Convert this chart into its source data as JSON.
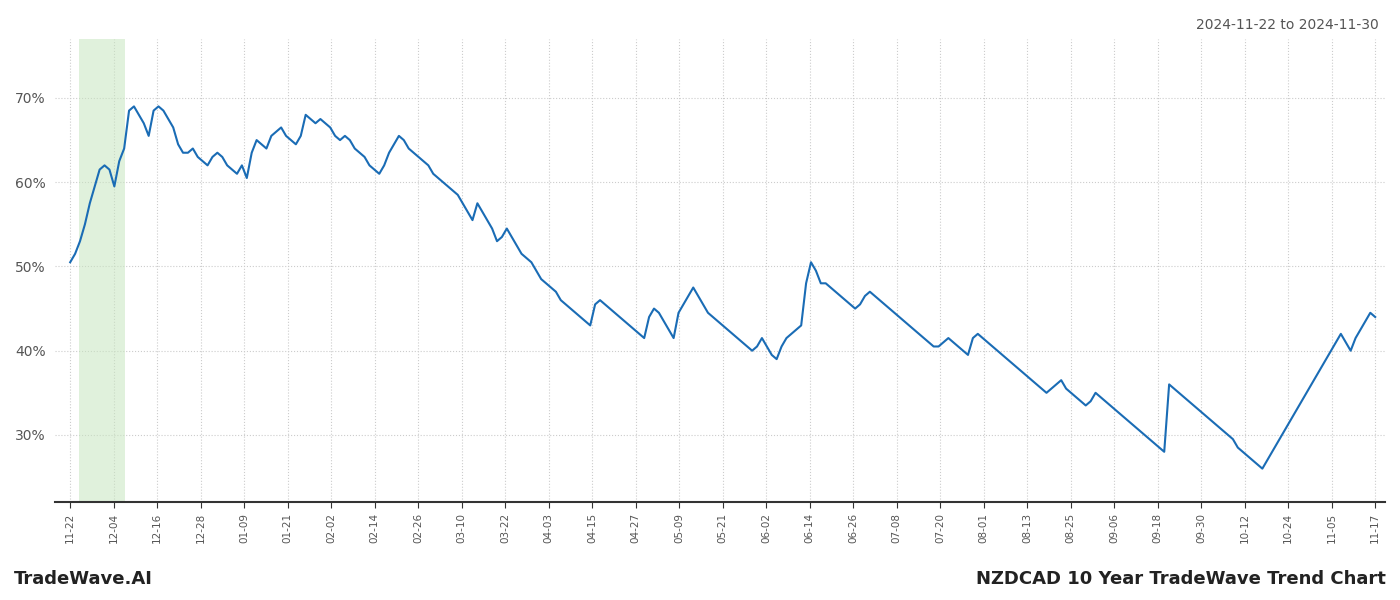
{
  "title_right": "2024-11-22 to 2024-11-30",
  "footer_left": "TradeWave.AI",
  "footer_right": "NZDCAD 10 Year TradeWave Trend Chart",
  "line_color": "#1a6cb5",
  "line_width": 1.5,
  "highlight_color": "#c8e6c0",
  "highlight_alpha": 0.55,
  "background_color": "#ffffff",
  "grid_color": "#cccccc",
  "grid_style": ":",
  "ylim": [
    22,
    77
  ],
  "yticks": [
    30,
    40,
    50,
    60,
    70
  ],
  "tick_labels": [
    "11-22",
    "12-04",
    "12-16",
    "12-28",
    "01-09",
    "01-21",
    "02-02",
    "02-14",
    "02-26",
    "03-10",
    "03-22",
    "04-03",
    "04-15",
    "04-27",
    "05-09",
    "05-21",
    "06-02",
    "06-14",
    "06-26",
    "07-08",
    "07-20",
    "08-01",
    "08-13",
    "08-25",
    "09-06",
    "09-18",
    "09-30",
    "10-12",
    "10-24",
    "11-05",
    "11-17"
  ],
  "values": [
    50.5,
    51.5,
    53.0,
    55.0,
    57.5,
    59.5,
    61.5,
    62.0,
    61.5,
    59.5,
    62.5,
    64.0,
    68.5,
    69.0,
    68.0,
    67.0,
    65.5,
    68.5,
    69.0,
    68.5,
    67.5,
    66.5,
    64.5,
    63.5,
    63.5,
    64.0,
    63.0,
    62.5,
    62.0,
    63.0,
    63.5,
    63.0,
    62.0,
    61.5,
    61.0,
    62.0,
    60.5,
    63.5,
    65.0,
    64.5,
    64.0,
    65.5,
    66.0,
    66.5,
    65.5,
    65.0,
    64.5,
    65.5,
    68.0,
    67.5,
    67.0,
    67.5,
    67.0,
    66.5,
    65.5,
    65.0,
    65.5,
    65.0,
    64.0,
    63.5,
    63.0,
    62.0,
    61.5,
    61.0,
    62.0,
    63.5,
    64.5,
    65.5,
    65.0,
    64.0,
    63.5,
    63.0,
    62.5,
    62.0,
    61.0,
    60.5,
    60.0,
    59.5,
    59.0,
    58.5,
    57.5,
    56.5,
    55.5,
    57.5,
    56.5,
    55.5,
    54.5,
    53.0,
    53.5,
    54.5,
    53.5,
    52.5,
    51.5,
    51.0,
    50.5,
    49.5,
    48.5,
    48.0,
    47.5,
    47.0,
    46.0,
    45.5,
    45.0,
    44.5,
    44.0,
    43.5,
    43.0,
    45.5,
    46.0,
    45.5,
    45.0,
    44.5,
    44.0,
    43.5,
    43.0,
    42.5,
    42.0,
    41.5,
    44.0,
    45.0,
    44.5,
    43.5,
    42.5,
    41.5,
    44.5,
    45.5,
    46.5,
    47.5,
    46.5,
    45.5,
    44.5,
    44.0,
    43.5,
    43.0,
    42.5,
    42.0,
    41.5,
    41.0,
    40.5,
    40.0,
    40.5,
    41.5,
    40.5,
    39.5,
    39.0,
    40.5,
    41.5,
    42.0,
    42.5,
    43.0,
    48.0,
    50.5,
    49.5,
    48.0,
    48.0,
    47.5,
    47.0,
    46.5,
    46.0,
    45.5,
    45.0,
    45.5,
    46.5,
    47.0,
    46.5,
    46.0,
    45.5,
    45.0,
    44.5,
    44.0,
    43.5,
    43.0,
    42.5,
    42.0,
    41.5,
    41.0,
    40.5,
    40.5,
    41.0,
    41.5,
    41.0,
    40.5,
    40.0,
    39.5,
    41.5,
    42.0,
    41.5,
    41.0,
    40.5,
    40.0,
    39.5,
    39.0,
    38.5,
    38.0,
    37.5,
    37.0,
    36.5,
    36.0,
    35.5,
    35.0,
    35.5,
    36.0,
    36.5,
    35.5,
    35.0,
    34.5,
    34.0,
    33.5,
    34.0,
    35.0,
    34.5,
    34.0,
    33.5,
    33.0,
    32.5,
    32.0,
    31.5,
    31.0,
    30.5,
    30.0,
    29.5,
    29.0,
    28.5,
    28.0,
    36.0,
    35.5,
    35.0,
    34.5,
    34.0,
    33.5,
    33.0,
    32.5,
    32.0,
    31.5,
    31.0,
    30.5,
    30.0,
    29.5,
    28.5,
    28.0,
    27.5,
    27.0,
    26.5,
    26.0,
    27.0,
    28.0,
    29.0,
    30.0,
    31.0,
    32.0,
    33.0,
    34.0,
    35.0,
    36.0,
    37.0,
    38.0,
    39.0,
    40.0,
    41.0,
    42.0,
    41.0,
    40.0,
    41.5,
    42.5,
    43.5,
    44.5,
    44.0
  ]
}
